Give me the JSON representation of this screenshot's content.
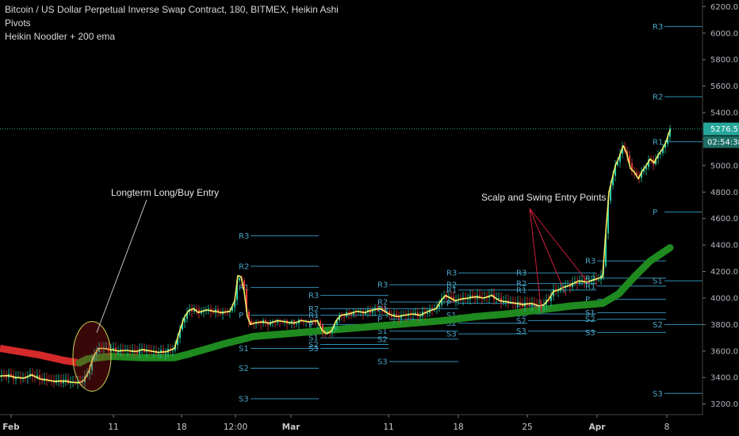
{
  "legend": {
    "title": "Bitcoin / US Dollar Perpetual Inverse Swap Contract, 180, BITMEX, Heikin Ashi",
    "study1": "Pivots",
    "study2": "Heikin Noodler + 200 ema"
  },
  "colors": {
    "ema_bear": "#d42a2a",
    "ema_bull": "#1f8a1f",
    "pivot": "#2f8fb5",
    "price_line": "#26a69a",
    "up": "#26c6a6",
    "down": "#e53935",
    "noodle": "#f5ee63"
  },
  "chart_data": {
    "type": "line",
    "y_ticks": [
      3200,
      3400,
      3600,
      3800,
      4000,
      4200,
      4400,
      4600,
      4800,
      5000,
      5200,
      5400,
      5600,
      5800,
      6000,
      6200
    ],
    "ylim": [
      3120,
      6250
    ],
    "x_ticks": [
      "Feb",
      "11",
      "18",
      "12:00",
      "Mar",
      "11",
      "18",
      "25",
      "Apr",
      "8"
    ],
    "current_price": "5276.5",
    "countdown": "02:54:38",
    "price": {
      "x": [
        0,
        10,
        20,
        30,
        40,
        50,
        60,
        70,
        80,
        90,
        100,
        106,
        112,
        118,
        124,
        130,
        140,
        150,
        160,
        170,
        180,
        190,
        200,
        210,
        220,
        226,
        232,
        238,
        244,
        250,
        260,
        270,
        280,
        290,
        296,
        300,
        304,
        308,
        312,
        316,
        320,
        330,
        340,
        350,
        360,
        370,
        380,
        390,
        400,
        406,
        412,
        418,
        424,
        430,
        440,
        450,
        460,
        470,
        480,
        490,
        500,
        510,
        520,
        530,
        540,
        550,
        556,
        562,
        568,
        574,
        580,
        590,
        600,
        610,
        620,
        630,
        640,
        650,
        660,
        670,
        680,
        686,
        692,
        698,
        704,
        710,
        720,
        730,
        740,
        750,
        760,
        764,
        768,
        772,
        776,
        780,
        786,
        790,
        795,
        800,
        805,
        810,
        815,
        820,
        825,
        830,
        835,
        840,
        845
      ],
      "y": [
        3410,
        3415,
        3400,
        3395,
        3420,
        3390,
        3380,
        3370,
        3375,
        3365,
        3360,
        3380,
        3450,
        3560,
        3620,
        3620,
        3610,
        3600,
        3605,
        3595,
        3610,
        3600,
        3590,
        3595,
        3620,
        3740,
        3850,
        3905,
        3920,
        3890,
        3910,
        3900,
        3890,
        3900,
        3980,
        4170,
        4160,
        4050,
        3860,
        3800,
        3810,
        3820,
        3810,
        3830,
        3820,
        3810,
        3830,
        3820,
        3830,
        3760,
        3730,
        3750,
        3830,
        3870,
        3880,
        3900,
        3890,
        3910,
        3920,
        3880,
        3860,
        3870,
        3880,
        3870,
        3900,
        3920,
        3980,
        4020,
        4000,
        3980,
        3990,
        4000,
        4010,
        4000,
        4020,
        3980,
        3970,
        3960,
        3950,
        3960,
        3940,
        3950,
        3990,
        4050,
        4060,
        4080,
        4100,
        4130,
        4120,
        4140,
        4160,
        4500,
        4800,
        4900,
        5000,
        5050,
        5150,
        5100,
        4980,
        4950,
        4900,
        4960,
        5000,
        5050,
        5020,
        5080,
        5120,
        5180,
        5270
      ]
    },
    "ema200": {
      "x": [
        0,
        50,
        80,
        100,
        110,
        140,
        180,
        220,
        240,
        280,
        320,
        360,
        400,
        440,
        480,
        520,
        560,
        600,
        640,
        680,
        720,
        760,
        780,
        800,
        820,
        845
      ],
      "y": [
        3620,
        3570,
        3530,
        3510,
        3540,
        3560,
        3550,
        3550,
        3580,
        3650,
        3710,
        3730,
        3750,
        3770,
        3790,
        3810,
        3830,
        3860,
        3880,
        3910,
        3940,
        3960,
        4030,
        4160,
        4280,
        4380
      ],
      "bear_until_x": 108
    },
    "pivot_groups": [
      {
        "x_start": 300,
        "x_end": 402,
        "levels": {
          "R3": 4470,
          "R2": 4240,
          "R1": 4080,
          "P": 3870,
          "S1": 3620,
          "S2": 3470,
          "S3": 3240
        }
      },
      {
        "x_start": 388,
        "x_end": 490,
        "levels": {
          "R3": 4020,
          "R2": 3920,
          "R1": 3870,
          "P": 3800,
          "S1": 3700,
          "S2": 3650,
          "S3": 3620
        }
      },
      {
        "x_start": 475,
        "x_end": 578,
        "levels": {
          "R3": 4100,
          "R2": 3970,
          "R1": 3920,
          "P": 3840,
          "S1": 3750,
          "S2": 3690,
          "S3": 3520
        }
      },
      {
        "x_start": 562,
        "x_end": 665,
        "levels": {
          "R3": 4190,
          "R2": 4100,
          "R1": 4060,
          "P": 3960,
          "S1": 3870,
          "S2": 3810,
          "S3": 3730
        }
      },
      {
        "x_start": 650,
        "x_end": 752,
        "levels": {
          "R3": 4190,
          "R2": 4110,
          "R1": 4060,
          "P": 3940,
          "S1": 3880,
          "S2": 3830,
          "S3": 3750
        }
      },
      {
        "x_start": 737,
        "x_end": 840,
        "levels": {
          "R3": 4280,
          "R2": 4150,
          "R1": 4090,
          "P": 3990,
          "S1": 3890,
          "S2": 3840,
          "S3": 3740
        }
      },
      {
        "x_start": 822,
        "x_end": 886,
        "levels": {
          "R3": 6050,
          "R2": 5520,
          "R1": 5180,
          "P": 4650,
          "S1": 4130,
          "S2": 3800,
          "S3": 3280
        }
      }
    ],
    "annotations": [
      {
        "text": "Longterm Long/Buy Entry",
        "label_x": 140,
        "label_y": 243,
        "targets": [
          [
            122,
            3740
          ]
        ]
      },
      {
        "text": "Scalp and Swing Entry Points",
        "label_x": 607,
        "label_y": 249,
        "targets": [
          [
            683,
            3890
          ],
          [
            714,
            4020
          ],
          [
            744,
            4100
          ]
        ]
      }
    ]
  }
}
